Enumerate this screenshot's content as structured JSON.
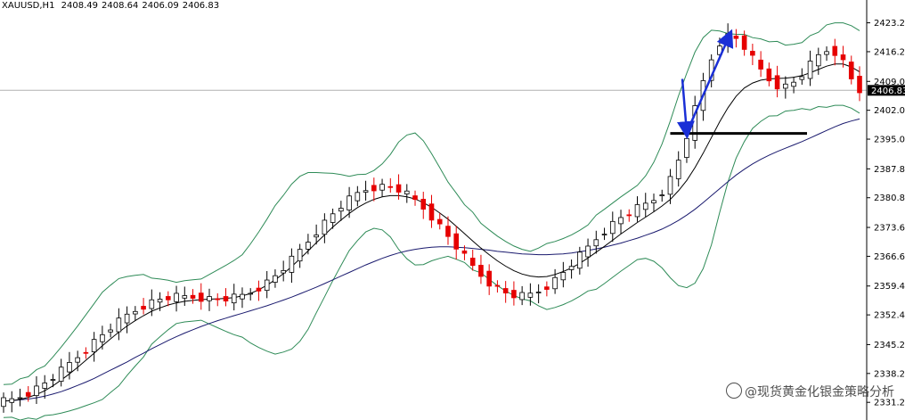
{
  "header": {
    "symbol": "XAUUSD,H1",
    "open": "2408.49",
    "high": "2408.64",
    "low": "2406.09",
    "close": "2406.83"
  },
  "watermark": {
    "text": "@现货黄金化银金策略分析"
  },
  "colors": {
    "bull": "#000000",
    "bear": "#e60000",
    "bands": "#2e8b57",
    "ma_fast": "#000000",
    "ma_slow": "#1a1a6e",
    "arrow": "#1a2fd6",
    "level": "#000000"
  },
  "chart_data": {
    "type": "candlestick",
    "symbol": "XAUUSD",
    "timeframe": "H1",
    "ylim": [
      2328,
      2427
    ],
    "yticks": [
      "2423.20",
      "2416.20",
      "2409.00",
      "2402.00",
      "2395.00",
      "2387.80",
      "2380.80",
      "2373.60",
      "2366.60",
      "2359.40",
      "2352.40",
      "2345.20",
      "2338.20",
      "2331.20"
    ],
    "current_price": "2406.83",
    "support_level": 2396.4,
    "closes": [
      2331.5,
      2331.8,
      2332.6,
      2333.5,
      2334.6,
      2335.9,
      2337.3,
      2338.9,
      2340.6,
      2342.3,
      2344.1,
      2345.9,
      2347.6,
      2349.3,
      2350.8,
      2352.3,
      2353.5,
      2354.6,
      2355.5,
      2356.2,
      2356.6,
      2356.8,
      2356.8,
      2356.7,
      2356.5,
      2356.3,
      2356.2,
      2356.3,
      2356.6,
      2357.1,
      2357.9,
      2359.0,
      2360.3,
      2361.9,
      2363.7,
      2365.8,
      2368.0,
      2370.3,
      2372.6,
      2374.8,
      2376.9,
      2378.8,
      2380.4,
      2381.8,
      2382.8,
      2383.3,
      2383.5,
      2383.3,
      2382.7,
      2381.6,
      2380.1,
      2378.3,
      2376.2,
      2373.9,
      2371.4,
      2368.9,
      2366.5,
      2364.1,
      2362.0,
      2360.2,
      2358.8,
      2357.7,
      2357.1,
      2357.0,
      2357.4,
      2358.2,
      2359.4,
      2360.9,
      2362.7,
      2364.7,
      2366.8,
      2368.8,
      2370.9,
      2372.8,
      2374.5,
      2376.0,
      2377.2,
      2378.3,
      2379.2,
      2380.4,
      2382.3,
      2385.4,
      2389.9,
      2395.7,
      2402.3,
      2408.9,
      2414.5,
      2418.4,
      2420.0,
      2419.4,
      2417.3,
      2414.5,
      2411.7,
      2409.4,
      2408.0,
      2407.8,
      2408.8,
      2410.7,
      2413.1,
      2415.2,
      2416.5,
      2416.1,
      2413.7,
      2409.6,
      2406.8
    ],
    "ma_fast": [
      2331.5,
      2331.6,
      2331.9,
      2332.4,
      2333.1,
      2334.0,
      2335.2,
      2336.6,
      2338.1,
      2339.7,
      2341.4,
      2343.1,
      2344.9,
      2346.6,
      2348.2,
      2349.7,
      2351.0,
      2352.2,
      2353.3,
      2354.1,
      2354.8,
      2355.3,
      2355.7,
      2355.9,
      2356.1,
      2356.2,
      2356.3,
      2356.4,
      2356.6,
      2357.0,
      2357.6,
      2358.5,
      2359.6,
      2360.9,
      2362.4,
      2364.1,
      2366.0,
      2367.9,
      2369.9,
      2371.8,
      2373.7,
      2375.4,
      2377.0,
      2378.4,
      2379.5,
      2380.4,
      2381.0,
      2381.3,
      2381.3,
      2381.0,
      2380.5,
      2379.6,
      2378.5,
      2377.1,
      2375.6,
      2373.9,
      2372.1,
      2370.3,
      2368.6,
      2367.0,
      2365.5,
      2364.2,
      2363.1,
      2362.3,
      2361.8,
      2361.6,
      2361.7,
      2362.2,
      2362.9,
      2363.8,
      2364.9,
      2366.2,
      2367.6,
      2369.0,
      2370.5,
      2372.0,
      2373.4,
      2374.8,
      2376.1,
      2377.4,
      2378.8,
      2380.4,
      2382.5,
      2385.0,
      2388.1,
      2391.6,
      2395.4,
      2399.2,
      2402.6,
      2405.4,
      2407.4,
      2408.6,
      2409.3,
      2409.6,
      2409.7,
      2409.8,
      2410.0,
      2410.4,
      2411.1,
      2411.9,
      2412.7,
      2413.2,
      2413.2,
      2412.5,
      2411.3
    ],
    "ma_slow": [
      2331.5,
      2331.6,
      2331.8,
      2332.0,
      2332.3,
      2332.7,
      2333.2,
      2333.8,
      2334.5,
      2335.3,
      2336.1,
      2337.0,
      2338.0,
      2339.0,
      2340.0,
      2341.0,
      2342.1,
      2343.1,
      2344.2,
      2345.2,
      2346.2,
      2347.1,
      2348.0,
      2348.8,
      2349.6,
      2350.3,
      2351.0,
      2351.6,
      2352.2,
      2352.8,
      2353.4,
      2354.0,
      2354.6,
      2355.3,
      2356.0,
      2356.7,
      2357.5,
      2358.3,
      2359.1,
      2360.0,
      2360.9,
      2361.8,
      2362.7,
      2363.6,
      2364.5,
      2365.3,
      2366.1,
      2366.8,
      2367.4,
      2367.9,
      2368.3,
      2368.6,
      2368.8,
      2368.9,
      2368.9,
      2368.8,
      2368.7,
      2368.5,
      2368.3,
      2368.1,
      2367.8,
      2367.6,
      2367.4,
      2367.2,
      2367.1,
      2367.0,
      2367.0,
      2367.1,
      2367.2,
      2367.4,
      2367.7,
      2368.0,
      2368.4,
      2368.8,
      2369.3,
      2369.8,
      2370.4,
      2371.0,
      2371.7,
      2372.4,
      2373.2,
      2374.2,
      2375.3,
      2376.6,
      2378.0,
      2379.6,
      2381.3,
      2383.0,
      2384.7,
      2386.3,
      2387.7,
      2389.0,
      2390.1,
      2391.1,
      2392.0,
      2392.8,
      2393.6,
      2394.4,
      2395.3,
      2396.2,
      2397.1,
      2398.0,
      2398.8,
      2399.4,
      2399.9
    ],
    "bb_width": [
      4,
      4,
      5,
      5,
      6,
      6,
      7,
      8,
      9,
      10,
      11,
      12,
      13,
      13,
      13,
      12,
      11,
      10,
      8,
      7,
      6,
      5,
      5,
      5,
      5,
      6,
      7,
      8,
      9,
      10,
      12,
      14,
      16,
      18,
      19,
      20,
      20,
      19,
      17,
      15,
      13,
      11,
      9,
      8,
      7,
      7,
      8,
      10,
      13,
      15,
      16,
      15,
      13,
      11,
      9,
      8,
      7,
      7,
      6,
      6,
      6,
      6,
      6,
      6,
      6,
      7,
      8,
      8,
      8,
      8,
      8,
      8,
      9,
      9,
      9,
      9,
      9,
      9,
      10,
      12,
      15,
      19,
      23,
      26,
      28,
      28,
      26,
      22,
      18,
      15,
      13,
      11,
      10,
      9,
      9,
      8,
      8,
      8,
      9,
      9,
      10,
      10,
      10,
      10,
      10
    ],
    "trend_lines": {
      "support": {
        "price": 2396.4
      },
      "arrow_down": {
        "from": 2409.6,
        "to": 2396.6
      },
      "arrow_up": {
        "from": 2396.6,
        "to": 2420.2
      }
    }
  }
}
